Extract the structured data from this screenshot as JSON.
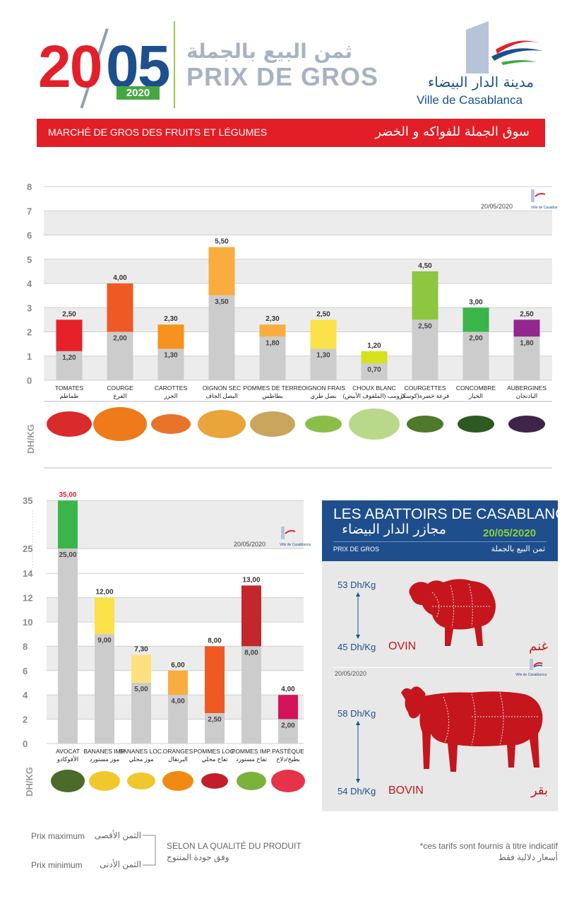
{
  "header": {
    "year_big_a": "20",
    "year_big_b": "05",
    "year_small": "2020",
    "title_ar": "ثمن البيع بالجملة",
    "title_fr": "PRIX DE GROS",
    "logo_ar": "مدينة الدار البيضاء",
    "logo_fr": "Ville de Casablanca",
    "band_fr": "MARCHÉ DE GROS DES FRUITS ET LÉGUMES",
    "band_ar": "سوق الجملة للفواكه و الخضر"
  },
  "unit_label": "DH/KG",
  "chart_data": [
    {
      "type": "bar",
      "date": "20/05/2020",
      "logo_ar": "مدينة الدار البيضاء",
      "logo_fr": "Ville de Casablanca",
      "ylim": [
        0,
        8
      ],
      "yticks": [
        "0",
        "1",
        "2",
        "3",
        "4",
        "5",
        "6",
        "7",
        "8"
      ],
      "categories": [
        "TOMATES",
        "COURGE",
        "CAROTTES",
        "OIGNON SEC",
        "POMMES DE TERRE",
        "OIGNON FRAIS",
        "CHOUX BLANC",
        "COURGETTES",
        "CONCOMBRE",
        "AUBERGINES"
      ],
      "categories_ar": [
        "طماطم",
        "القرع",
        "الجزر",
        "البصل الجاف",
        "بطاطس",
        "بصل طري",
        "كرومب (الملفوف الأبيض)",
        "قرعة خضرة(كوسة)",
        "الخيار",
        "الباذنجان"
      ],
      "series": [
        {
          "name": "Prix minimum",
          "values": [
            1.2,
            2.0,
            1.3,
            3.5,
            1.8,
            1.3,
            0.7,
            2.5,
            2.0,
            1.8
          ],
          "labels": [
            "1,20",
            "2,00",
            "1,30",
            "3,50",
            "1,80",
            "1,30",
            "0,70",
            "2,50",
            "2,00",
            "1,80"
          ]
        },
        {
          "name": "Prix maximum",
          "values": [
            2.5,
            4.0,
            2.3,
            5.5,
            2.3,
            2.5,
            1.2,
            4.5,
            3.0,
            2.5
          ],
          "labels": [
            "2,50",
            "4,00",
            "2,30",
            "5,50",
            "2,30",
            "2,50",
            "1,20",
            "4,50",
            "3,00",
            "2,50"
          ]
        }
      ],
      "colors": [
        "#e62129",
        "#ef5a24",
        "#f7921e",
        "#f9ad3e",
        "#f9ad3e",
        "#fbe14a",
        "#d7e21e",
        "#8dc63f",
        "#3ab54a",
        "#92278f"
      ]
    },
    {
      "type": "bar",
      "date": "20/05/2020",
      "logo_ar": "مدينة الدار البيضاء",
      "logo_fr": "Ville de Casablanca",
      "ylim": [
        0,
        35
      ],
      "yticks": [
        "0",
        "2",
        "4",
        "6",
        "8",
        "10",
        "12",
        "14",
        "25",
        "35"
      ],
      "categories": [
        "AVOCAT",
        "BANANES IMP.",
        "BANANES LOC.",
        "ORANGES",
        "POMMES LOC.",
        "POMMES IMP.",
        "PASTÈQUE"
      ],
      "categories_ar": [
        "الأفوكادو",
        "موز مستورد",
        "موز محلي",
        "البرتقال",
        "تفاح محلي",
        "تفاح مستورد",
        "بطيخ/دلاح"
      ],
      "series": [
        {
          "name": "Prix minimum",
          "values": [
            25.0,
            9.0,
            5.0,
            4.0,
            2.5,
            8.0,
            2.0
          ],
          "labels": [
            "25,00",
            "9,00",
            "5,00",
            "4,00",
            "2,50",
            "8,00",
            "2,00"
          ]
        },
        {
          "name": "Prix maximum",
          "values": [
            35.0,
            12.0,
            7.3,
            6.0,
            8.0,
            13.0,
            4.0
          ],
          "labels": [
            "35,00",
            "12,00",
            "7,30",
            "6,00",
            "8,00",
            "13,00",
            "4,00"
          ]
        }
      ],
      "colors": [
        "#3ab54a",
        "#fbe14a",
        "#fde17e",
        "#f9ad3e",
        "#ef5a24",
        "#c1272d",
        "#d4145a"
      ]
    }
  ],
  "abattoirs": {
    "title_fr": "LES ABATTOIRS DE CASABLANCA",
    "title_ar": "مجازر الدار البيضاء",
    "date": "20/05/2020",
    "sub_fr": "PRIX DE GROS",
    "sub_ar": "ثمن البيع بالجملة",
    "ovin": {
      "max": "53 Dh/Kg",
      "min": "45 Dh/Kg",
      "label_fr": "OVIN",
      "label_ar": "غنم"
    },
    "bovin": {
      "max": "58 Dh/Kg",
      "min": "54 Dh/Kg",
      "label_fr": "BOVIN",
      "label_ar": "بقر"
    },
    "inner_date": "20/05/2020",
    "logo_fr": "Ville de Casablanca"
  },
  "legend": {
    "max_fr": "Prix maximum",
    "max_ar": "الثمن الأقصى",
    "min_fr": "Prix minimum",
    "min_ar": "الثمن الأدنى",
    "quality_fr": "SELON LA QUALITÉ DU PRODUIT",
    "quality_ar": "وفق جودة المنتوج",
    "note_fr": "*ces tarifs sont fournis à titre indicatif",
    "note_ar": "أسعار دلالية فقط"
  }
}
